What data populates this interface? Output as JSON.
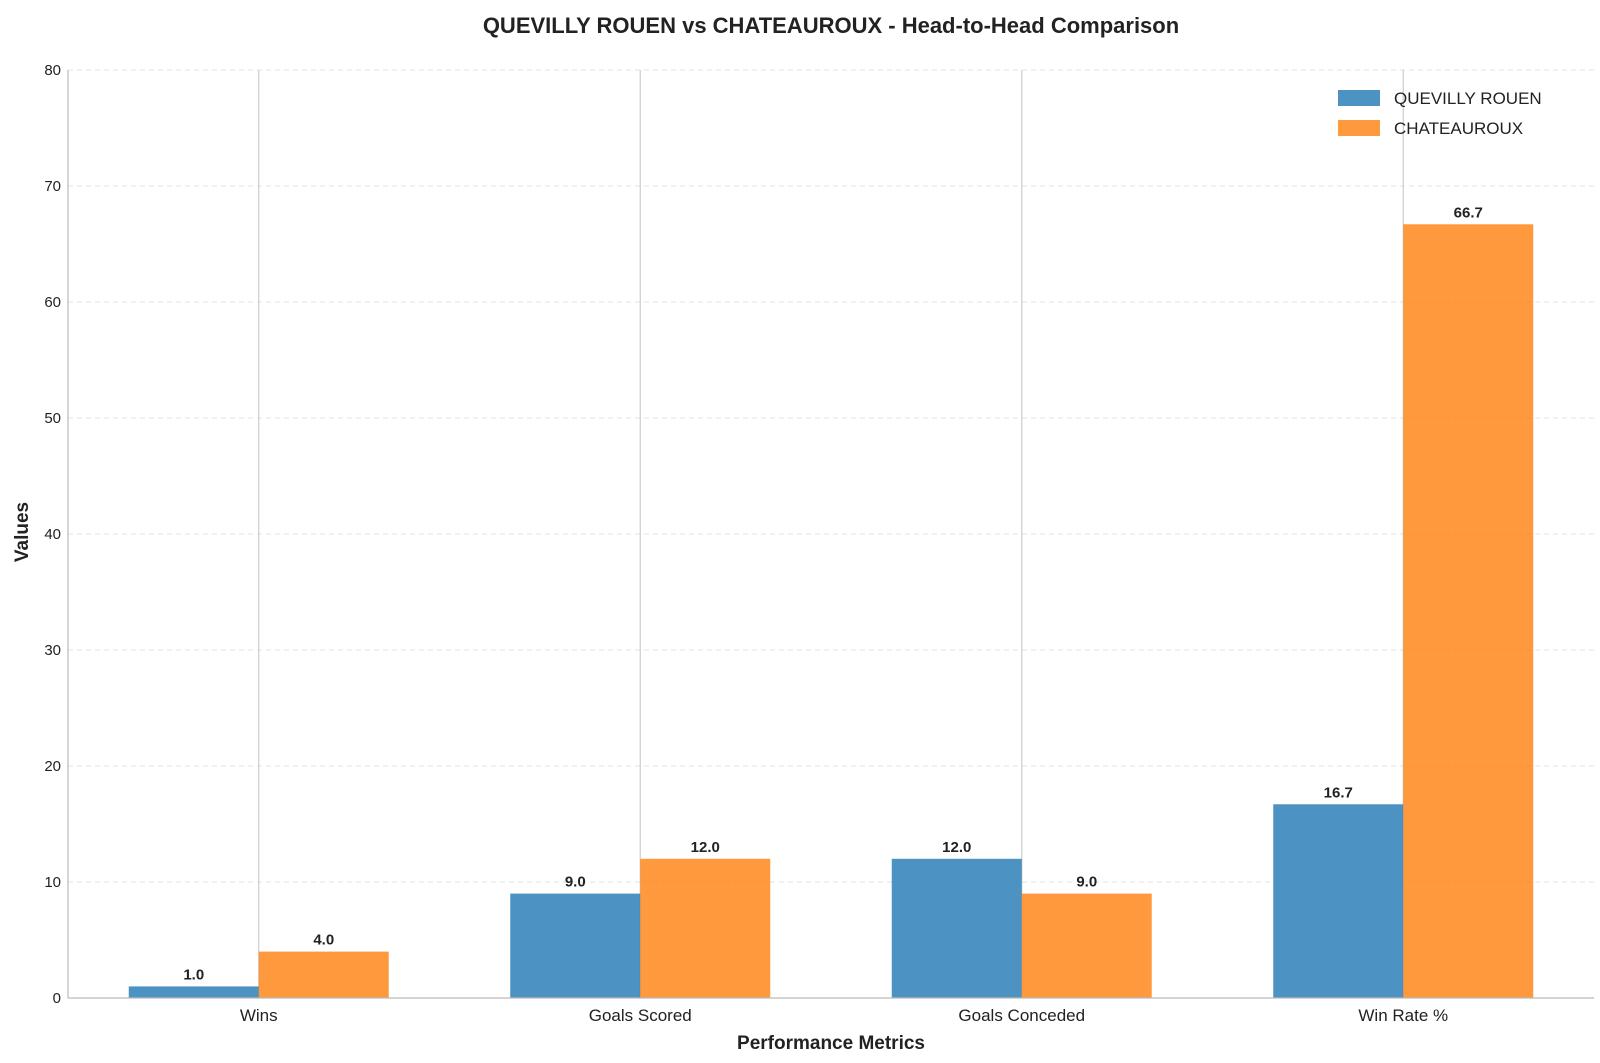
{
  "chart_data": {
    "type": "bar",
    "title": "QUEVILLY ROUEN vs CHATEAUROUX - Head-to-Head Comparison",
    "xlabel": "Performance Metrics",
    "ylabel": "Values",
    "categories": [
      "Wins",
      "Goals Scored",
      "Goals Conceded",
      "Win Rate %"
    ],
    "series": [
      {
        "name": "QUEVILLY ROUEN",
        "values": [
          1.0,
          9.0,
          12.0,
          16.7
        ],
        "color": "#1f77b4"
      },
      {
        "name": "CHATEAUROUX",
        "values": [
          4.0,
          12.0,
          9.0,
          66.7
        ],
        "color": "#ff7f0e"
      }
    ],
    "ylim": [
      0,
      80
    ],
    "yticks": [
      "0",
      "10",
      "20",
      "30",
      "40",
      "50",
      "60",
      "70",
      "80"
    ],
    "grid": "y-dashed",
    "legend_position": "top-right"
  }
}
